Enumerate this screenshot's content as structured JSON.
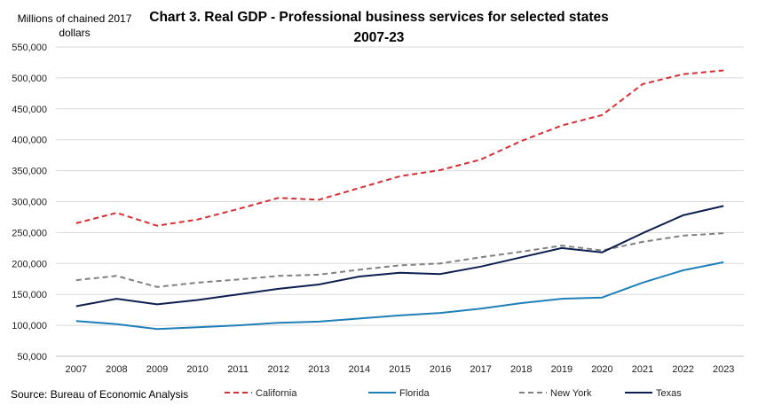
{
  "chart_data": {
    "type": "line",
    "title_line1": "Chart 3. Real GDP - Professional business services for selected states",
    "title_line2": "2007-23",
    "ylabel_line1": "Millions of chained 2017",
    "ylabel_line2": "dollars",
    "source": "Source: Bureau of Economic Analysis",
    "ylim": [
      50000,
      550000
    ],
    "yticks": [
      50000,
      100000,
      150000,
      200000,
      250000,
      300000,
      350000,
      400000,
      450000,
      500000,
      550000
    ],
    "ytick_labels": [
      "50,000",
      "100,000",
      "150,000",
      "200,000",
      "250,000",
      "300,000",
      "350,000",
      "400,000",
      "450,000",
      "500,000",
      "550,000"
    ],
    "categories": [
      "2007",
      "2008",
      "2009",
      "2010",
      "2011",
      "2012",
      "2013",
      "2014",
      "2015",
      "2016",
      "2017",
      "2018",
      "2019",
      "2020",
      "2021",
      "2022",
      "2023"
    ],
    "grid": true,
    "legend_position": "bottom",
    "series": [
      {
        "name": "California",
        "color": "#d62f35",
        "dash": "dashed",
        "values": [
          265000,
          282000,
          261000,
          271000,
          288000,
          306000,
          303000,
          322000,
          341000,
          351000,
          368000,
          398000,
          423000,
          440000,
          490000,
          506000,
          512000
        ]
      },
      {
        "name": "Florida",
        "color": "#1f7fb8",
        "dash": "solid",
        "values": [
          107000,
          102000,
          94000,
          97000,
          100000,
          104000,
          106000,
          111000,
          116000,
          120000,
          127000,
          136000,
          143000,
          145000,
          169000,
          189000,
          202000
        ]
      },
      {
        "name": "New York",
        "color": "#808080",
        "dash": "dashed",
        "values": [
          173000,
          180000,
          162000,
          169000,
          174000,
          180000,
          182000,
          190000,
          197000,
          200000,
          210000,
          219000,
          229000,
          221000,
          235000,
          245000,
          249000
        ]
      },
      {
        "name": "Texas",
        "color": "#0d1f4f",
        "dash": "solid",
        "values": [
          131000,
          143000,
          134000,
          141000,
          150000,
          159000,
          166000,
          179000,
          185000,
          183000,
          195000,
          210000,
          225000,
          218000,
          249000,
          278000,
          293000
        ]
      }
    ]
  }
}
